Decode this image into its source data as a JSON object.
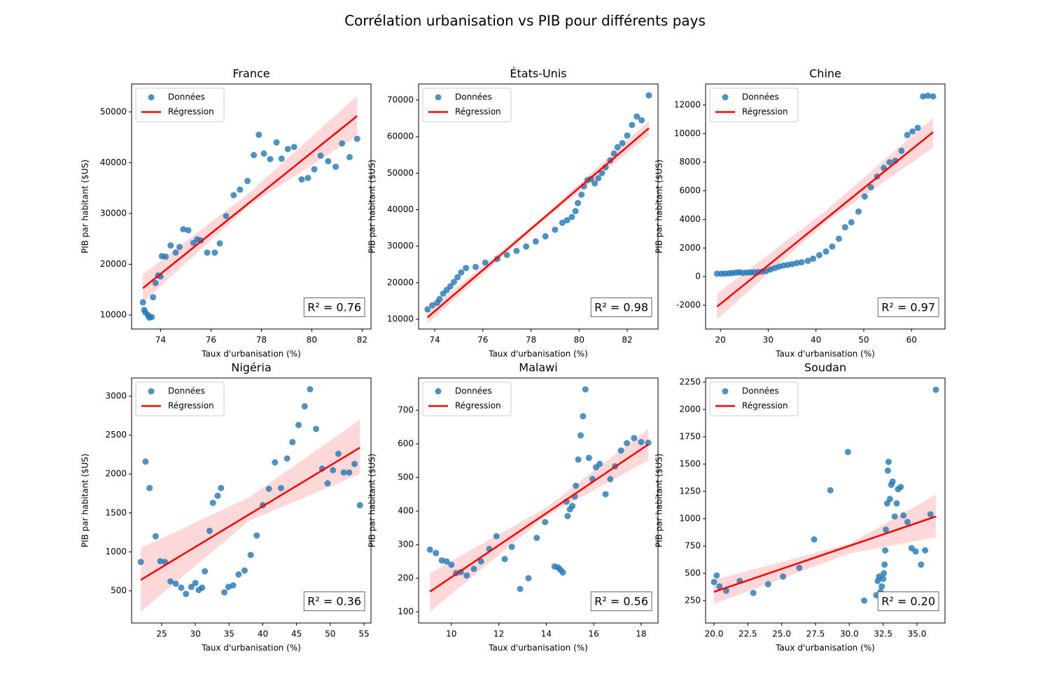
{
  "title": "Corrélation urbanisation vs PIB pour différents pays",
  "chart_data": [
    {
      "type": "scatter",
      "title": "France",
      "xlabel": "Taux d'urbanisation (%)",
      "ylabel": "PIB par habitant ($US)",
      "legend": "upper left",
      "annotation": "R² = 0.76",
      "xlim": [
        72.85,
        82.35
      ],
      "ylim": [
        7250,
        55500
      ],
      "xticks": [
        74,
        76,
        78,
        80,
        82
      ],
      "yticks": [
        10000,
        20000,
        30000,
        40000,
        50000
      ],
      "series": [
        {
          "name": "Données",
          "color": "#1f77b4",
          "x": [
            73.3,
            73.35,
            73.4,
            73.5,
            73.55,
            73.65,
            73.7,
            73.8,
            73.9,
            74.0,
            74.05,
            74.2,
            74.4,
            74.6,
            74.75,
            74.9,
            75.1,
            75.3,
            75.45,
            75.6,
            75.85,
            76.15,
            76.35,
            76.6,
            76.9,
            77.15,
            77.45,
            77.7,
            77.9,
            78.1,
            78.35,
            78.6,
            78.8,
            79.05,
            79.3,
            79.6,
            79.85,
            80.1,
            80.35,
            80.65,
            80.95,
            81.2,
            81.5,
            81.8
          ],
          "values": [
            12500,
            11000,
            10500,
            10000,
            9500,
            9600,
            13500,
            16300,
            17800,
            17600,
            21600,
            21500,
            23700,
            22300,
            23400,
            26900,
            26700,
            24200,
            24900,
            24700,
            22300,
            22300,
            24100,
            29500,
            33600,
            34700,
            36400,
            41500,
            45500,
            41800,
            40700,
            44000,
            40800,
            42700,
            43100,
            36700,
            37000,
            38700,
            41400,
            40300,
            39200,
            43800,
            41100,
            44700
          ]
        },
        {
          "name": "Régression",
          "color": "#ff0000",
          "x": [
            73.3,
            81.8
          ],
          "values": [
            15300,
            49200
          ],
          "band": {
            "x": [
              73.3,
              77.5,
              81.8
            ],
            "lower": [
              12500,
              31500,
              45300
            ],
            "upper": [
              18000,
              34000,
              53200
            ]
          }
        }
      ]
    },
    {
      "type": "scatter",
      "title": "États-Unis",
      "xlabel": "Taux d'urbanisation (%)",
      "ylabel": "PIB par habitant ($US)",
      "legend": "upper left",
      "annotation": "R² = 0.98",
      "xlim": [
        73.33,
        83.28
      ],
      "ylim": [
        7317,
        74410
      ],
      "xticks": [
        74,
        76,
        78,
        80,
        82
      ],
      "yticks": [
        10000,
        20000,
        30000,
        40000,
        50000,
        60000,
        70000
      ],
      "series": [
        {
          "name": "Données",
          "color": "#1f77b4",
          "x": [
            73.7,
            73.9,
            74.1,
            74.2,
            74.35,
            74.5,
            74.65,
            74.8,
            74.95,
            75.1,
            75.3,
            75.7,
            76.1,
            76.6,
            77.0,
            77.4,
            77.8,
            78.2,
            78.6,
            79.0,
            79.3,
            79.5,
            79.7,
            79.85,
            79.95,
            80.1,
            80.2,
            80.35,
            80.5,
            80.65,
            80.8,
            80.95,
            81.1,
            81.3,
            81.45,
            81.6,
            81.8,
            82.0,
            82.2,
            82.4,
            82.6,
            82.9
          ],
          "values": [
            12700,
            13800,
            14500,
            15500,
            17000,
            18000,
            19000,
            20200,
            21500,
            22800,
            24000,
            24300,
            25500,
            26500,
            27600,
            28700,
            29900,
            31300,
            32700,
            34500,
            36400,
            37100,
            38000,
            39600,
            41800,
            44100,
            46400,
            48100,
            48400,
            47200,
            48600,
            50000,
            51600,
            53500,
            55400,
            57100,
            58200,
            60300,
            63200,
            65500,
            64500,
            71300
          ]
        },
        {
          "name": "Régression",
          "color": "#ff0000",
          "x": [
            73.7,
            82.9
          ],
          "values": [
            10500,
            62300
          ],
          "band": {
            "x": [
              73.7,
              78.3,
              82.9
            ],
            "lower": [
              8800,
              35800,
              60300
            ],
            "upper": [
              12200,
              37000,
              64300
            ]
          }
        }
      ]
    },
    {
      "type": "scatter",
      "title": "Chine",
      "xlabel": "Taux d'urbanisation (%)",
      "ylabel": "PIB par habitant ($US)",
      "legend": "upper left",
      "annotation": "R² = 0.97",
      "xlim": [
        16.9,
        67.0
      ],
      "ylim": [
        -3664,
        13468
      ],
      "xticks": [
        20,
        30,
        40,
        50,
        60
      ],
      "yticks": [
        -2000,
        0,
        2000,
        4000,
        6000,
        8000,
        10000,
        12000
      ],
      "series": [
        {
          "name": "Données",
          "color": "#1f77b4",
          "x": [
            19.3,
            20.2,
            21,
            21.8,
            22.5,
            23.3,
            24,
            24.7,
            25.5,
            26.3,
            27,
            27.9,
            28.8,
            29.6,
            30.5,
            31.4,
            32.3,
            33.2,
            34.1,
            35,
            36,
            37,
            38.3,
            39.4,
            40.7,
            42.1,
            43.4,
            44.8,
            46.1,
            47.4,
            48.9,
            50.2,
            51.5,
            52.8,
            54.2,
            55.4,
            56.6,
            57.9,
            59.1,
            60.2,
            61.3,
            62.4,
            63.4,
            64.5
          ],
          "values": [
            200,
            200,
            210,
            230,
            250,
            280,
            300,
            260,
            280,
            290,
            300,
            320,
            350,
            400,
            500,
            600,
            700,
            780,
            820,
            870,
            950,
            1000,
            1100,
            1250,
            1500,
            1750,
            2100,
            2650,
            3450,
            3800,
            4550,
            5600,
            6250,
            7000,
            7600,
            8000,
            8100,
            8800,
            9900,
            10150,
            10400,
            12600,
            12650,
            12600
          ]
        },
        {
          "name": "Régression",
          "color": "#ff0000",
          "x": [
            19.3,
            64.5
          ],
          "values": [
            -2100,
            10100
          ],
          "band": {
            "x": [
              19.3,
              42,
              64.5
            ],
            "lower": [
              -3000,
              3800,
              9000
            ],
            "upper": [
              -1200,
              4600,
              11100
            ]
          }
        }
      ]
    },
    {
      "type": "scatter",
      "title": "Nigéria",
      "xlabel": "Taux d'urbanisation (%)",
      "ylabel": "PIB par habitant ($US)",
      "legend": "upper left",
      "annotation": "R² = 0.36",
      "xlim": [
        20.54,
        56.04
      ],
      "ylim": [
        86,
        3234
      ],
      "xticks": [
        25,
        30,
        35,
        40,
        45,
        50,
        55
      ],
      "yticks": [
        500,
        1000,
        1500,
        2000,
        2500,
        3000
      ],
      "series": [
        {
          "name": "Données",
          "color": "#1f77b4",
          "x": [
            21.9,
            22.6,
            23.2,
            24.1,
            24.8,
            25.5,
            26.3,
            27.1,
            27.9,
            28.6,
            29.4,
            30.0,
            30.5,
            31.0,
            31.4,
            32.1,
            32.6,
            33.3,
            33.8,
            34.3,
            34.9,
            35.6,
            36.4,
            37.3,
            38.2,
            39.1,
            40.0,
            40.9,
            41.8,
            42.7,
            43.6,
            44.4,
            45.3,
            46.2,
            47.0,
            47.9,
            48.8,
            49.6,
            50.4,
            51.2,
            52.0,
            52.8,
            53.6,
            54.4
          ],
          "values": [
            870,
            2160,
            1820,
            1200,
            880,
            870,
            620,
            590,
            540,
            460,
            550,
            600,
            510,
            540,
            750,
            1270,
            1630,
            1720,
            1820,
            480,
            550,
            570,
            710,
            760,
            960,
            1210,
            1600,
            1810,
            2150,
            1820,
            2200,
            2410,
            2630,
            2870,
            3090,
            2580,
            2070,
            1880,
            2050,
            2260,
            2020,
            2020,
            2130,
            1600
          ]
        },
        {
          "name": "Régression",
          "color": "#ff0000",
          "x": [
            21.9,
            54.4
          ],
          "values": [
            640,
            2340
          ],
          "band": {
            "x": [
              21.9,
              38,
              54.4
            ],
            "lower": [
              230,
              1400,
              2000
            ],
            "upper": [
              1050,
              1700,
              2700
            ]
          }
        }
      ]
    },
    {
      "type": "scatter",
      "title": "Malawi",
      "xlabel": "Taux d'urbanisation (%)",
      "ylabel": "PIB par habitant ($US)",
      "legend": "upper left",
      "annotation": "R² = 0.56",
      "xlim": [
        8.62,
        18.71
      ],
      "ylim": [
        66.7,
        795.8
      ],
      "xticks": [
        10,
        12,
        14,
        16,
        18
      ],
      "yticks": [
        100,
        200,
        300,
        400,
        500,
        600,
        700
      ],
      "series": [
        {
          "name": "Données",
          "color": "#1f77b4",
          "x": [
            9.1,
            9.35,
            9.6,
            9.8,
            10.0,
            10.2,
            10.4,
            10.65,
            10.95,
            11.25,
            11.6,
            11.9,
            12.25,
            12.55,
            12.9,
            13.25,
            13.6,
            13.95,
            14.35,
            14.5,
            14.6,
            14.7,
            14.85,
            14.9,
            15.0,
            15.1,
            15.2,
            15.25,
            15.35,
            15.45,
            15.55,
            15.65,
            15.8,
            15.95,
            16.1,
            16.25,
            16.5,
            16.7,
            16.9,
            17.15,
            17.4,
            17.7,
            18.0,
            18.3
          ],
          "values": [
            285,
            275,
            253,
            250,
            240,
            215,
            218,
            208,
            228,
            250,
            287,
            325,
            257,
            293,
            168,
            200,
            320,
            367,
            235,
            232,
            225,
            217,
            428,
            385,
            405,
            415,
            443,
            475,
            553,
            625,
            682,
            762,
            558,
            495,
            530,
            540,
            450,
            495,
            533,
            580,
            602,
            617,
            605,
            603
          ]
        },
        {
          "name": "Régression",
          "color": "#ff0000",
          "x": [
            9.1,
            18.3
          ],
          "values": [
            160,
            598
          ],
          "band": {
            "x": [
              9.1,
              14,
              18.3
            ],
            "lower": [
              100,
              385,
              550
            ],
            "upper": [
              215,
              410,
              645
            ]
          }
        }
      ]
    },
    {
      "type": "scatter",
      "title": "Soudan",
      "xlabel": "Taux d'urbanisation (%)",
      "ylabel": "PIB par habitant ($US)",
      "legend": "upper left",
      "annotation": "R² = 0.20",
      "xlim": [
        19.38,
        37.07
      ],
      "ylim": [
        45,
        2288
      ],
      "xticks": [
        {
          "value": 20,
          "label": "20.0"
        },
        {
          "value": 22.5,
          "label": "22.5"
        },
        {
          "value": 25,
          "label": "25.0"
        },
        {
          "value": 27.5,
          "label": "27.5"
        },
        {
          "value": 30,
          "label": "30.0"
        },
        {
          "value": 32.5,
          "label": "32.5"
        },
        {
          "value": 35,
          "label": "35.0"
        }
      ],
      "yticks": [
        250,
        500,
        750,
        1000,
        1250,
        1500,
        1750,
        2000,
        2250
      ],
      "series": [
        {
          "name": "Données",
          "color": "#1f77b4",
          "x": [
            20.0,
            20.2,
            20.4,
            20.9,
            21.9,
            22.9,
            24.0,
            25.1,
            26.3,
            27.4,
            28.6,
            29.9,
            31.1,
            32.0,
            32.1,
            32.2,
            32.3,
            32.4,
            32.5,
            32.55,
            32.6,
            32.65,
            32.7,
            32.8,
            32.85,
            32.9,
            33.0,
            33.1,
            33.2,
            33.35,
            33.5,
            33.6,
            33.8,
            34.0,
            34.3,
            34.6,
            34.9,
            35.3,
            35.6,
            36.0,
            36.4
          ],
          "values": [
            420,
            480,
            380,
            340,
            430,
            320,
            400,
            470,
            550,
            810,
            1260,
            1610,
            250,
            300,
            430,
            470,
            330,
            380,
            450,
            500,
            580,
            710,
            900,
            1140,
            1440,
            1520,
            1180,
            1310,
            1340,
            1020,
            1140,
            1270,
            1290,
            1030,
            970,
            730,
            700,
            580,
            710,
            1040,
            2180
          ]
        },
        {
          "name": "Régression",
          "color": "#ff0000",
          "x": [
            20.0,
            36.4
          ],
          "values": [
            330,
            1020
          ],
          "band": {
            "x": [
              20.0,
              30,
              36.4
            ],
            "lower": [
              220,
              680,
              830
            ],
            "upper": [
              440,
              770,
              1220
            ]
          }
        }
      ]
    }
  ]
}
